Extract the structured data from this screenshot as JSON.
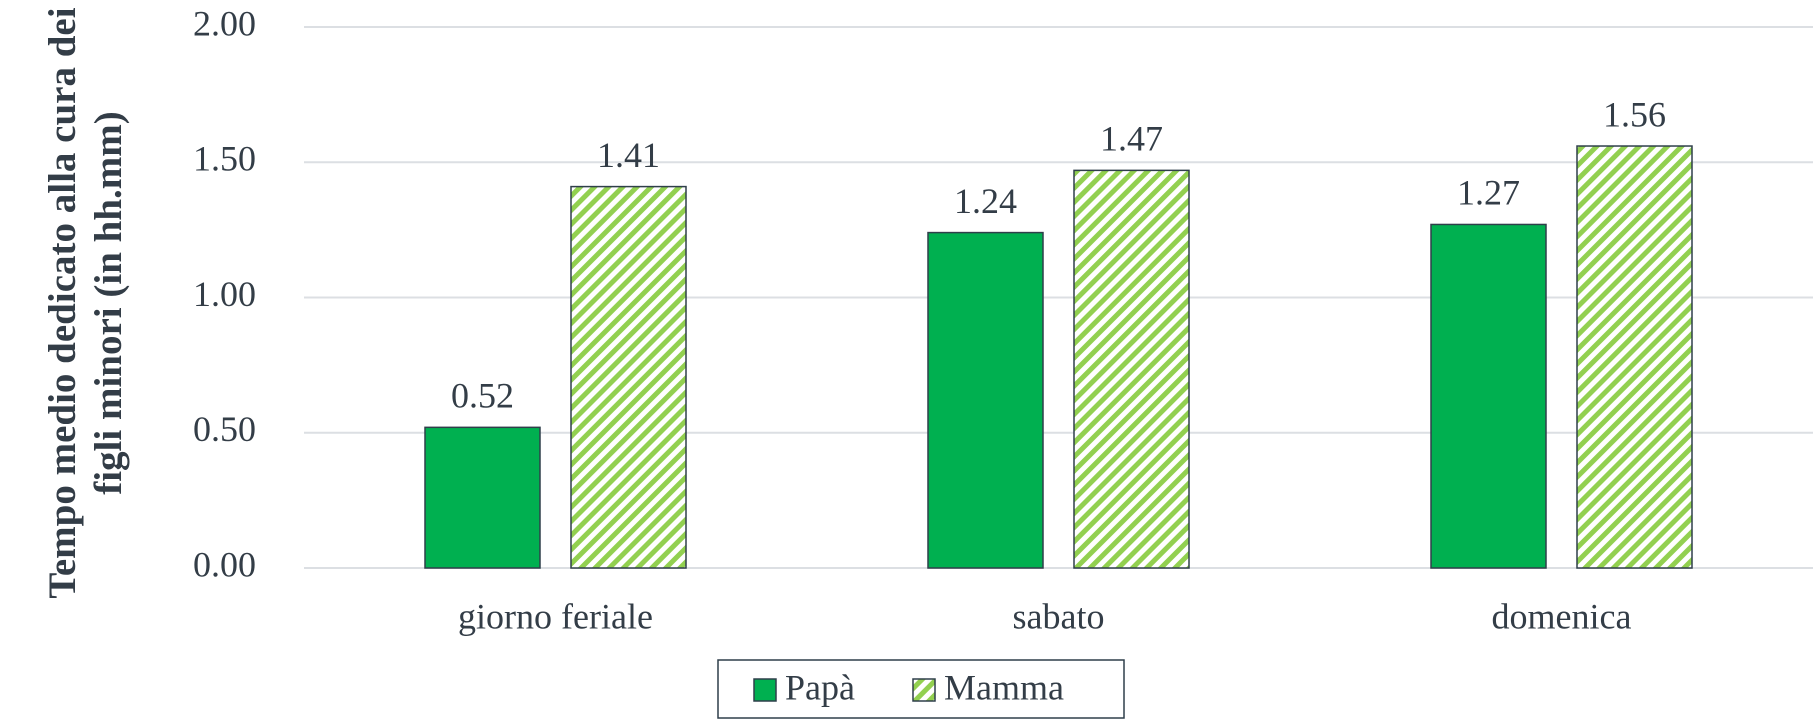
{
  "chart_data": {
    "type": "bar",
    "ylabel": "Tempo medio dedicato alla cura dei figli minori (in hh.mm)",
    "categories": [
      "giorno feriale",
      "sabato",
      "domenica"
    ],
    "series": [
      {
        "name": "Papà",
        "color": "#00b050",
        "values": [
          0.52,
          1.24,
          1.27
        ]
      },
      {
        "name": "Mamma",
        "color": "#92d050",
        "pattern": "hatch",
        "values": [
          1.41,
          1.47,
          1.56
        ]
      }
    ],
    "ylim": [
      0,
      2
    ],
    "yticks": [
      {
        "value": 0,
        "label": "0.00"
      },
      {
        "value": 0.5,
        "label": "0.50"
      },
      {
        "value": 1,
        "label": "1.00"
      },
      {
        "value": 1.5,
        "label": "1.50"
      },
      {
        "value": 2,
        "label": "2.00"
      }
    ],
    "grid": true,
    "legend": "bottom"
  }
}
